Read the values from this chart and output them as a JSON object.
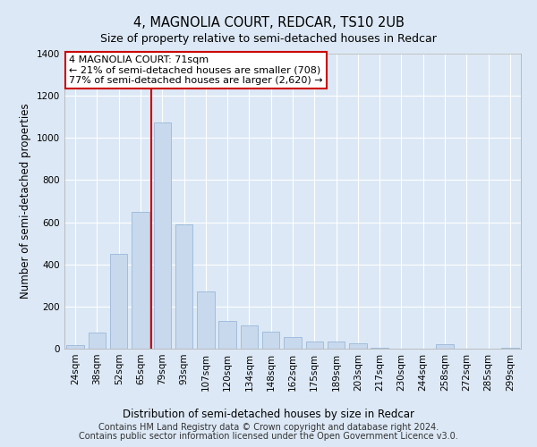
{
  "title": "4, MAGNOLIA COURT, REDCAR, TS10 2UB",
  "subtitle": "Size of property relative to semi-detached houses in Redcar",
  "xlabel": "Distribution of semi-detached houses by size in Redcar",
  "ylabel": "Number of semi-detached properties",
  "categories": [
    "24sqm",
    "38sqm",
    "52sqm",
    "65sqm",
    "79sqm",
    "93sqm",
    "107sqm",
    "120sqm",
    "134sqm",
    "148sqm",
    "162sqm",
    "175sqm",
    "189sqm",
    "203sqm",
    "217sqm",
    "230sqm",
    "244sqm",
    "258sqm",
    "272sqm",
    "285sqm",
    "299sqm"
  ],
  "values": [
    15,
    75,
    450,
    650,
    1075,
    590,
    270,
    130,
    110,
    80,
    55,
    35,
    35,
    25,
    5,
    0,
    0,
    20,
    0,
    0,
    5
  ],
  "bar_color": "#c8d9ee",
  "bar_edge_color": "#9ab8d8",
  "vline_pos": 3.5,
  "annotation_text": "4 MAGNOLIA COURT: 71sqm\n← 21% of semi-detached houses are smaller (708)\n77% of semi-detached houses are larger (2,620) →",
  "annotation_box_color": "#ffffff",
  "annotation_box_edge": "#cc0000",
  "vline_color": "#cc0000",
  "footer1": "Contains HM Land Registry data © Crown copyright and database right 2024.",
  "footer2": "Contains public sector information licensed under the Open Government Licence v3.0.",
  "ylim": [
    0,
    1400
  ],
  "yticks": [
    0,
    200,
    400,
    600,
    800,
    1000,
    1200,
    1400
  ],
  "background_color": "#dce8f5",
  "plot_bg_color": "#dce8f5",
  "grid_color": "#ffffff",
  "title_fontsize": 10.5,
  "subtitle_fontsize": 9,
  "axis_label_fontsize": 8.5,
  "tick_fontsize": 7.5,
  "footer_fontsize": 7,
  "annotation_fontsize": 8
}
